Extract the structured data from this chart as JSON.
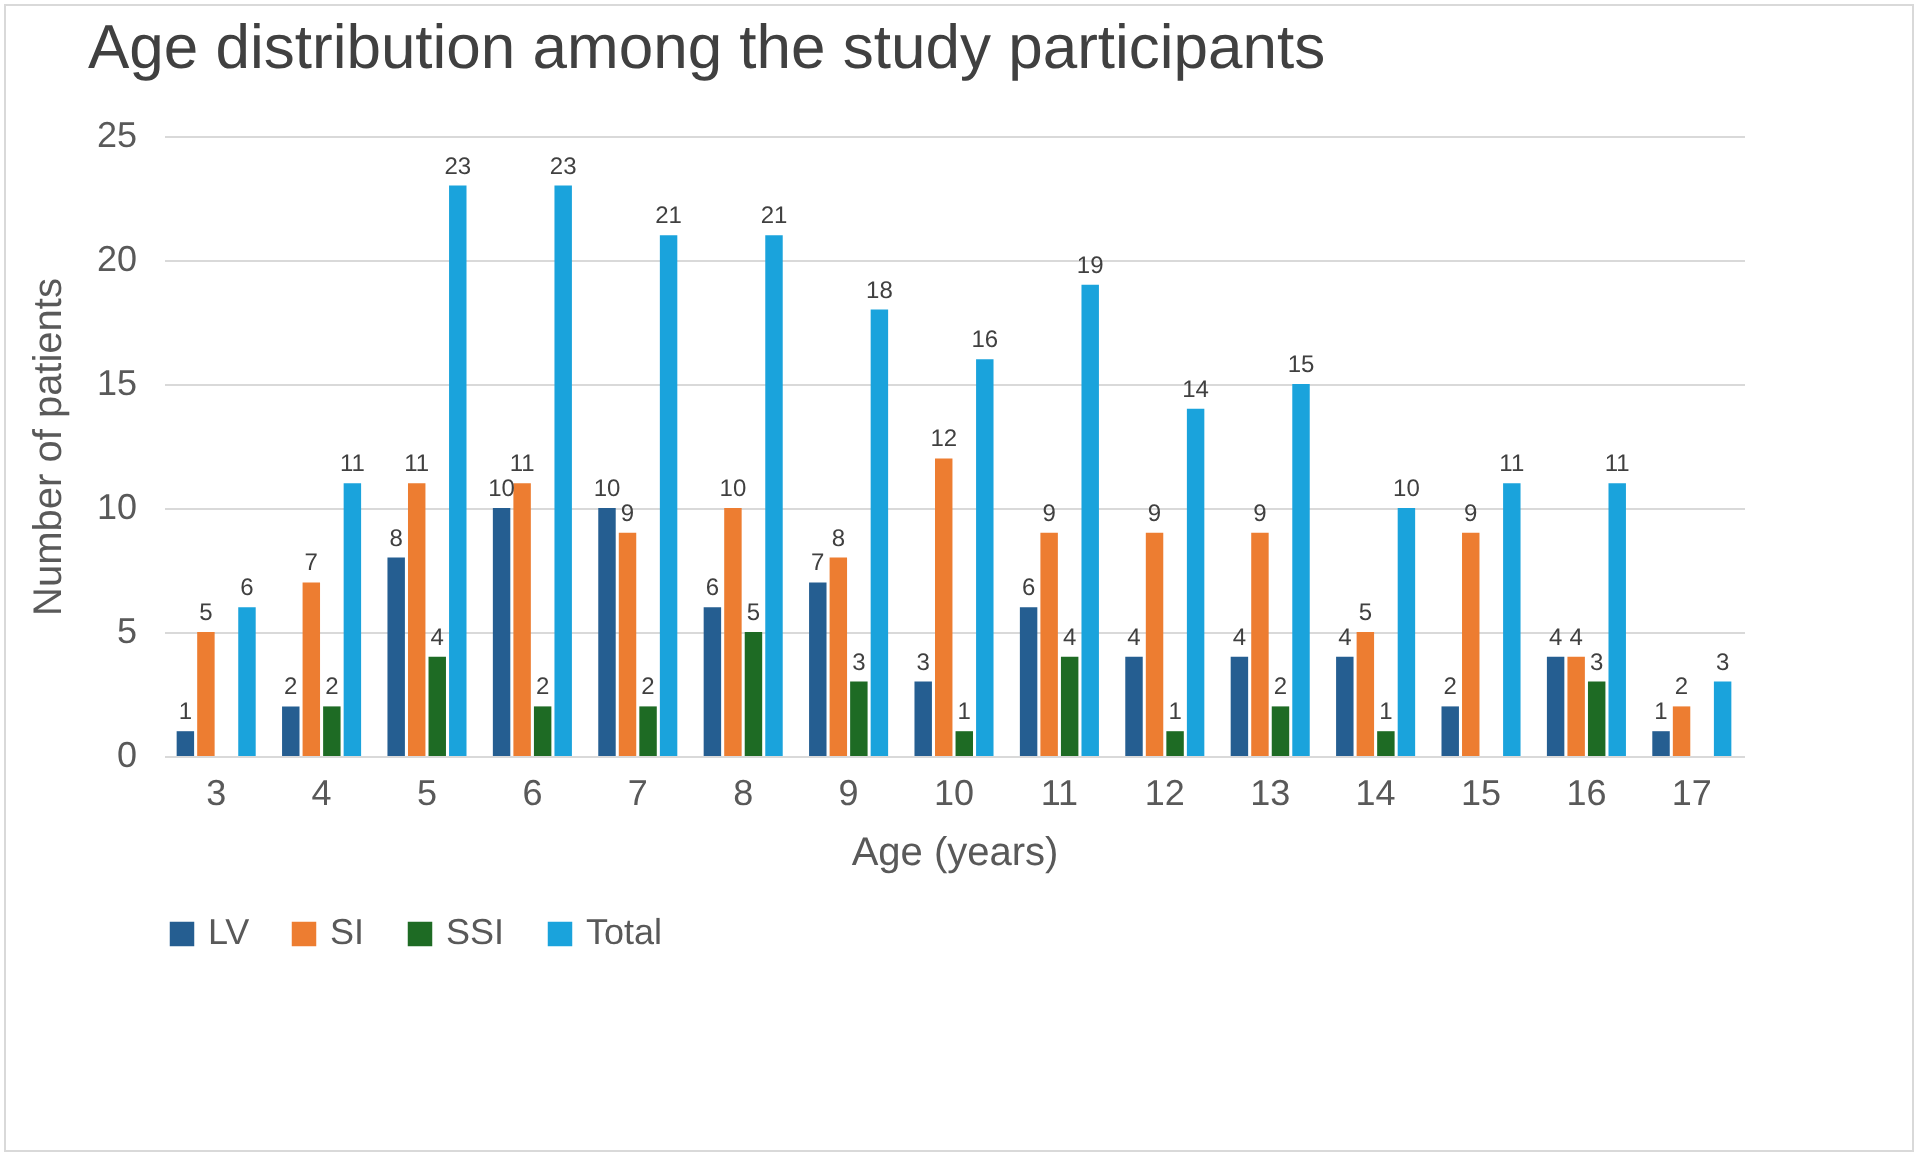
{
  "chart_data": {
    "type": "bar",
    "title": "Age distribution among the study participants",
    "xlabel": "Age (years)",
    "ylabel": "Number of patients",
    "categories": [
      "3",
      "4",
      "5",
      "6",
      "7",
      "8",
      "9",
      "10",
      "11",
      "12",
      "13",
      "14",
      "15",
      "16",
      "17"
    ],
    "series": [
      {
        "name": "LV",
        "color": "#255e91",
        "values": [
          1,
          2,
          8,
          10,
          10,
          6,
          7,
          3,
          6,
          4,
          4,
          4,
          2,
          4,
          1
        ]
      },
      {
        "name": "SI",
        "color": "#ed7d31",
        "values": [
          5,
          7,
          11,
          11,
          9,
          10,
          8,
          12,
          9,
          9,
          9,
          5,
          9,
          4,
          2
        ]
      },
      {
        "name": "SSI",
        "color": "#1e6b24",
        "values": [
          null,
          2,
          4,
          2,
          2,
          5,
          3,
          1,
          4,
          1,
          2,
          1,
          null,
          3,
          null
        ]
      },
      {
        "name": "Total",
        "color": "#1aa3dc",
        "values": [
          6,
          11,
          23,
          23,
          21,
          21,
          18,
          16,
          19,
          14,
          15,
          10,
          11,
          11,
          3
        ]
      }
    ],
    "ylim": [
      0,
      25
    ],
    "yticks": [
      0,
      5,
      10,
      15,
      20,
      25
    ],
    "grid": "y",
    "legend": "bottom",
    "data_labels": true
  }
}
